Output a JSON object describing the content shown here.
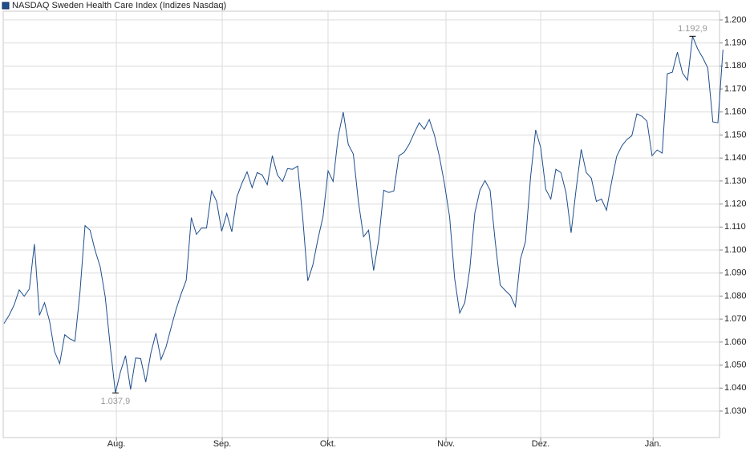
{
  "chart_data": {
    "type": "line",
    "series": [
      {
        "name": "NASDAQ Sweden Health Care Index  (Indizes Nasdaq)",
        "color": "#1f4e8c",
        "values": [
          1068.1,
          1071.6,
          1076.1,
          1082.7,
          1079.9,
          1083.1,
          1102.6,
          1071.6,
          1077.1,
          1069.1,
          1055.8,
          1050.6,
          1063.2,
          1061.4,
          1060.4,
          1081.7,
          1110.6,
          1108.6,
          1099.8,
          1092.8,
          1079.6,
          1057.6,
          1037.9,
          1047.1,
          1054.1,
          1039.4,
          1053.1,
          1052.8,
          1042.6,
          1055.1,
          1063.9,
          1052.4,
          1057.9,
          1066.3,
          1074.3,
          1081.0,
          1086.9,
          1114.1,
          1106.8,
          1109.6,
          1109.6,
          1125.7,
          1121.1,
          1108.2,
          1115.9,
          1107.9,
          1123.2,
          1129.1,
          1134.0,
          1127.1,
          1133.7,
          1132.6,
          1128.4,
          1141.0,
          1132.6,
          1129.8,
          1135.4,
          1135.1,
          1136.5,
          1114.1,
          1086.6,
          1093.5,
          1104.7,
          1114.5,
          1134.4,
          1129.8,
          1149.4,
          1159.9,
          1145.9,
          1141.7,
          1121.1,
          1105.8,
          1108.6,
          1091.1,
          1104.4,
          1126.0,
          1125.0,
          1125.7,
          1141.0,
          1142.4,
          1145.9,
          1150.8,
          1155.3,
          1152.5,
          1156.7,
          1150.1,
          1140.7,
          1128.8,
          1114.5,
          1087.6,
          1072.6,
          1077.1,
          1091.8,
          1116.2,
          1126.0,
          1130.2,
          1126.0,
          1104.0,
          1084.8,
          1082.4,
          1080.3,
          1075.4,
          1096.0,
          1103.7,
          1131.9,
          1152.2,
          1144.5,
          1126.4,
          1122.2,
          1135.1,
          1133.7,
          1125.0,
          1107.5,
          1126.7,
          1143.8,
          1133.7,
          1131.2,
          1121.1,
          1122.2,
          1117.3,
          1129.5,
          1140.7,
          1145.2,
          1148.0,
          1149.7,
          1159.2,
          1158.1,
          1156.0,
          1141.0,
          1143.5,
          1142.1,
          1176.6,
          1177.3,
          1186.0,
          1177.0,
          1173.8,
          1192.9,
          1187.4,
          1183.6,
          1179.1,
          1155.7,
          1155.3,
          1187.1
        ]
      }
    ],
    "annotations": [
      {
        "label": "1.192,9",
        "value": 1192.9
      },
      {
        "label": "1.037,9",
        "value": 1037.9
      }
    ],
    "xlim": [
      0,
      141
    ],
    "xticks": [
      {
        "value": 22.2,
        "label": "Aug."
      },
      {
        "value": 43.1,
        "label": "Sep."
      },
      {
        "value": 64.0,
        "label": "Okt."
      },
      {
        "value": 87.3,
        "label": "Nov."
      },
      {
        "value": 106.0,
        "label": "Dez."
      },
      {
        "value": 128.2,
        "label": "Jan."
      }
    ],
    "ylim": [
      1018.5,
      1203.8
    ],
    "yticks": [
      {
        "value": 1030,
        "label": "1.030"
      },
      {
        "value": 1040,
        "label": "1.040"
      },
      {
        "value": 1050,
        "label": "1.050"
      },
      {
        "value": 1060,
        "label": "1.060"
      },
      {
        "value": 1070,
        "label": "1.070"
      },
      {
        "value": 1080,
        "label": "1.080"
      },
      {
        "value": 1090,
        "label": "1.090"
      },
      {
        "value": 1100,
        "label": "1.100"
      },
      {
        "value": 1110,
        "label": "1.110"
      },
      {
        "value": 1120,
        "label": "1.120"
      },
      {
        "value": 1130,
        "label": "1.130"
      },
      {
        "value": 1140,
        "label": "1.140"
      },
      {
        "value": 1150,
        "label": "1.150"
      },
      {
        "value": 1160,
        "label": "1.160"
      },
      {
        "value": 1170,
        "label": "1.170"
      },
      {
        "value": 1180,
        "label": "1.180"
      },
      {
        "value": 1190,
        "label": "1.190"
      },
      {
        "value": 1200,
        "label": "1.200"
      }
    ],
    "grid": true
  }
}
